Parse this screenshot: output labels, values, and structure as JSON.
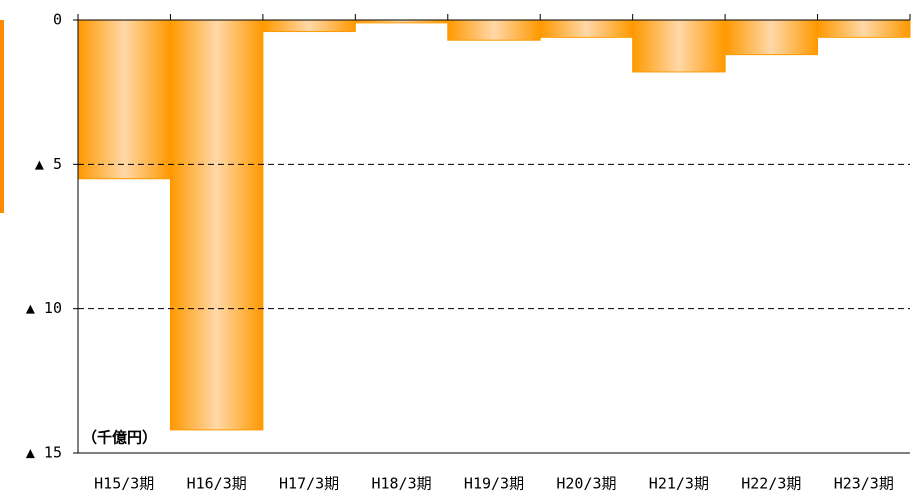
{
  "chart_data": {
    "type": "bar",
    "annotation": "（千億円）",
    "categories": [
      "H15/3期",
      "H16/3期",
      "H17/3期",
      "H18/3期",
      "H19/3期",
      "H20/3期",
      "H21/3期",
      "H22/3期",
      "H23/3期"
    ],
    "values": [
      -5.5,
      -14.2,
      -0.4,
      -0.1,
      -0.7,
      -0.6,
      -1.8,
      -1.2,
      -0.6
    ],
    "color": "#ff9900",
    "ylim": [
      -15,
      0
    ],
    "yticks": [
      0,
      {
        "value": -5,
        "label": "▲ 5"
      },
      {
        "value": -10,
        "label": "▲ 10"
      },
      {
        "value": -15,
        "label": "▲ 15"
      }
    ],
    "grid": true
  }
}
